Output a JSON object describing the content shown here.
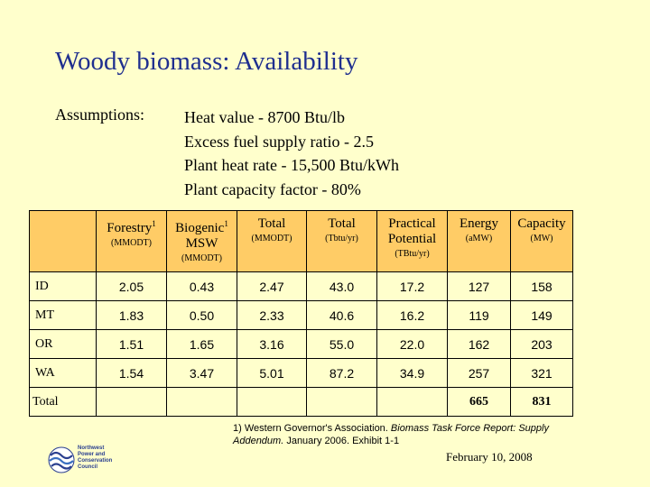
{
  "title": "Woody biomass:  Availability",
  "assumptions": {
    "label": "Assumptions:",
    "items": [
      "Heat value - 8700 Btu/lb",
      "Excess fuel supply ratio - 2.5",
      "Plant heat rate - 15,500 Btu/kWh",
      "Plant capacity factor - 80%"
    ]
  },
  "table": {
    "headers": [
      {
        "main": "Forestry",
        "sup": "1",
        "sub": "(MMODT)"
      },
      {
        "main": "Biogenic",
        "sup": "1",
        "main2": "MSW",
        "sub": "(MMODT)"
      },
      {
        "main": "Total",
        "sub": "(MMODT)"
      },
      {
        "main": "Total",
        "sub": "(Tbtu/yr)"
      },
      {
        "main": "Practical",
        "main2": "Potential",
        "sub": "(TBtu/yr)"
      },
      {
        "main": "Energy",
        "sub": "(aMW)"
      },
      {
        "main": "Capacity",
        "sub": "(MW)"
      }
    ],
    "rows": [
      {
        "name": "ID",
        "values": [
          "2.05",
          "0.43",
          "2.47",
          "43.0",
          "17.2",
          "127",
          "158"
        ]
      },
      {
        "name": "MT",
        "values": [
          "1.83",
          "0.50",
          "2.33",
          "40.6",
          "16.2",
          "119",
          "149"
        ]
      },
      {
        "name": "OR",
        "values": [
          "1.51",
          "1.65",
          "3.16",
          "55.0",
          "22.0",
          "162",
          "203"
        ]
      },
      {
        "name": "WA",
        "values": [
          "1.54",
          "3.47",
          "5.01",
          "87.2",
          "34.9",
          "257",
          "321"
        ]
      }
    ],
    "total": {
      "label": "Total",
      "energy": "665",
      "capacity": "831"
    }
  },
  "footnote": {
    "line1_a": "1) Western Governor's Association.  ",
    "line1_italic": "Biomass Task Force Report: Supply Addendum.",
    "line1_b": "  January 2006.  Exhibit 1-1"
  },
  "date": "February 10, 2008",
  "logo": {
    "line1": "Northwest",
    "line2": "Power and",
    "line3": "Conservation",
    "line4": "Council",
    "color": "#2A3F8F"
  }
}
